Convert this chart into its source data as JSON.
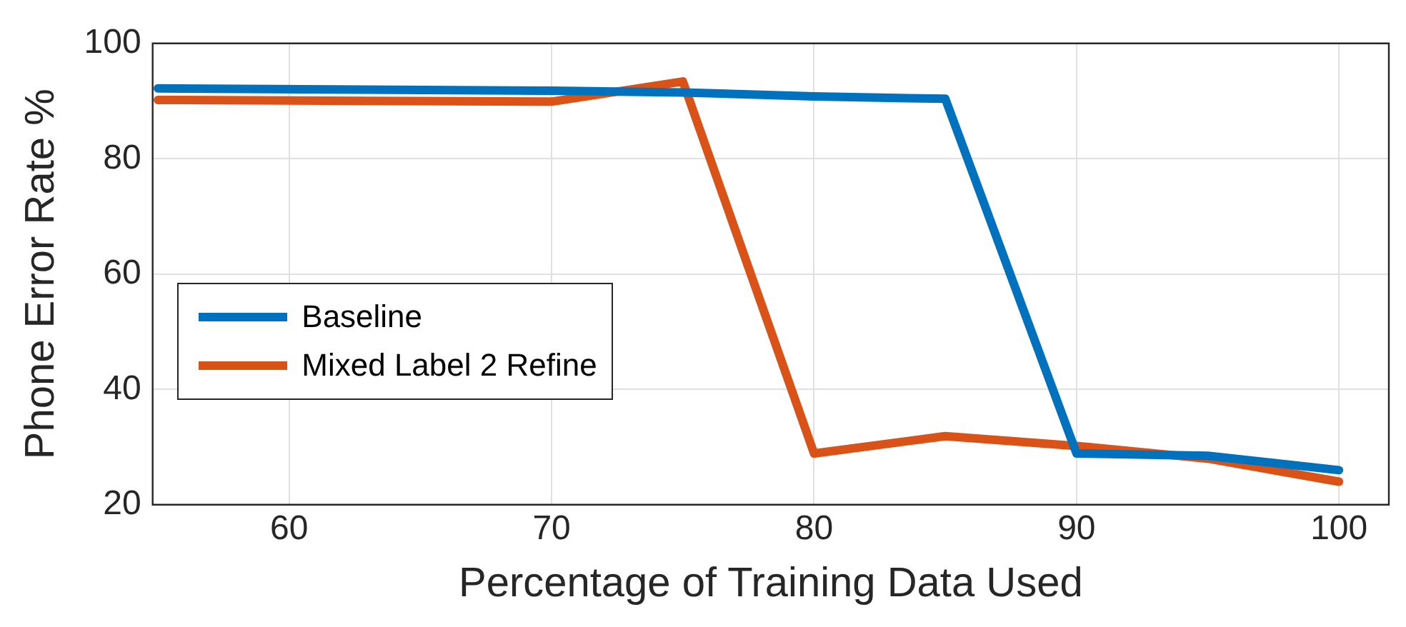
{
  "chart_data": {
    "type": "line",
    "xlabel": "Percentage of Training Data Used",
    "ylabel": "Phone Error Rate %",
    "x": [
      55,
      70,
      75,
      80,
      85,
      90,
      95,
      100
    ],
    "xlim": [
      54.8,
      101.9
    ],
    "xticks": [
      60,
      70,
      80,
      90,
      100
    ],
    "ylim": [
      20,
      100
    ],
    "yticks": [
      20,
      40,
      60,
      80,
      100
    ],
    "series": [
      {
        "name": "Baseline",
        "color": "#0072bd",
        "values": [
          92.2,
          91.8,
          91.5,
          90.8,
          90.4,
          28.9,
          28.5,
          26
        ]
      },
      {
        "name": "Mixed Label 2 Refine",
        "color": "#d95319",
        "values": [
          90.2,
          89.9,
          93.4,
          28.9,
          31.9,
          30.2,
          28,
          24
        ]
      }
    ],
    "grid": true,
    "legend": "left",
    "marker": "none",
    "line_style": "solid"
  }
}
